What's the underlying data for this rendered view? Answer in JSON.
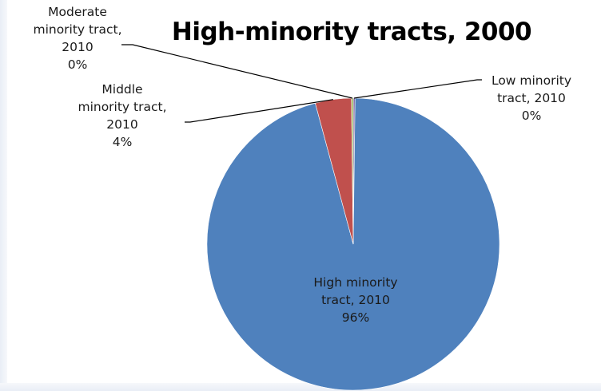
{
  "chart_data": {
    "type": "pie",
    "title": "High-minority tracts, 2000",
    "slices": [
      {
        "key": "high",
        "name_lines": [
          "High minority",
          "tract, 2010"
        ],
        "value": 96,
        "value_label": "96%",
        "color": "#4f81bd"
      },
      {
        "key": "middle",
        "name_lines": [
          "Middle",
          "minority tract,",
          "2010"
        ],
        "value": 4,
        "value_label": "4%",
        "color": "#c0504d"
      },
      {
        "key": "moderate",
        "name_lines": [
          "Moderate",
          "minority tract,",
          "2010"
        ],
        "value": 0.2,
        "value_label": "0%",
        "color": "#9bbb59"
      },
      {
        "key": "low",
        "name_lines": [
          "Low minority",
          "tract, 2010"
        ],
        "value": 0.2,
        "value_label": "0%",
        "color": "#8064a2"
      }
    ]
  }
}
